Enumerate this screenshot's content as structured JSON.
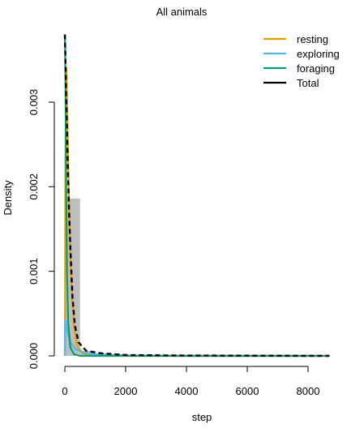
{
  "chart_data": {
    "type": "histogram+density",
    "title": "All animals",
    "xlabel": "step",
    "ylabel": "Density",
    "xlim": [
      0,
      8700
    ],
    "ylim": [
      0,
      0.0038
    ],
    "x_ticks": [
      0,
      2000,
      4000,
      6000,
      8000
    ],
    "x_tick_labels": [
      "0",
      "2000",
      "4000",
      "6000",
      "8000"
    ],
    "y_ticks": [
      0,
      0.001,
      0.002,
      0.003
    ],
    "y_tick_labels": [
      "0.000",
      "0.001",
      "0.002",
      "0.003"
    ],
    "histogram": {
      "bin_width": 500,
      "bins": [
        {
          "x0": 0,
          "x1": 500,
          "density": 0.00186
        },
        {
          "x0": 500,
          "x1": 1000,
          "density": 6e-05
        },
        {
          "x0": 1000,
          "x1": 1500,
          "density": 3e-05
        },
        {
          "x0": 1500,
          "x1": 2000,
          "density": 2e-05
        },
        {
          "x0": 2000,
          "x1": 2500,
          "density": 1e-05
        },
        {
          "x0": 2500,
          "x1": 3000,
          "density": 1e-05
        },
        {
          "x0": 3000,
          "x1": 3500,
          "density": 1e-05
        }
      ],
      "color": "#bebebe"
    },
    "series": [
      {
        "name": "resting",
        "color": "#E69F00",
        "dash": false,
        "points": [
          [
            0,
            0.0
          ],
          [
            5,
            0.0005
          ],
          [
            15,
            0.0021
          ],
          [
            30,
            0.0032
          ],
          [
            50,
            0.0034
          ],
          [
            80,
            0.0029
          ],
          [
            120,
            0.0021
          ],
          [
            170,
            0.0013
          ],
          [
            230,
            0.0007
          ],
          [
            300,
            0.00035
          ],
          [
            400,
            0.00012
          ],
          [
            600,
            3e-05
          ],
          [
            900,
            0.0
          ],
          [
            8700,
            0.0
          ]
        ]
      },
      {
        "name": "exploring",
        "color": "#56B4E9",
        "dash": false,
        "points": [
          [
            0,
            0.0
          ],
          [
            5,
            0.0003
          ],
          [
            20,
            0.00042
          ],
          [
            50,
            0.00035
          ],
          [
            100,
            0.00026
          ],
          [
            200,
            0.00015
          ],
          [
            350,
            8e-05
          ],
          [
            600,
            4e-05
          ],
          [
            1000,
            2e-05
          ],
          [
            2000,
            5e-06
          ],
          [
            4000,
            0.0
          ],
          [
            8700,
            0.0
          ]
        ]
      },
      {
        "name": "foraging",
        "color": "#009E73",
        "dash": false,
        "points": [
          [
            0,
            0.0038
          ],
          [
            10,
            0.0036
          ],
          [
            25,
            0.003
          ],
          [
            45,
            0.002
          ],
          [
            70,
            0.001
          ],
          [
            110,
            0.0004
          ],
          [
            180,
            0.0001
          ],
          [
            300,
            2e-05
          ],
          [
            500,
            0.0
          ],
          [
            8700,
            0.0
          ]
        ]
      },
      {
        "name": "Total",
        "color": "#000000",
        "dash": true,
        "points": [
          [
            0,
            0.0038
          ],
          [
            15,
            0.0036
          ],
          [
            40,
            0.0031
          ],
          [
            70,
            0.0027
          ],
          [
            100,
            0.0022
          ],
          [
            140,
            0.0017
          ],
          [
            190,
            0.0012
          ],
          [
            250,
            0.0007
          ],
          [
            330,
            0.00036
          ],
          [
            450,
            0.00016
          ],
          [
            700,
            6e-05
          ],
          [
            1200,
            3e-05
          ],
          [
            2000,
            1e-05
          ],
          [
            3500,
            5e-06
          ],
          [
            8700,
            0.0
          ]
        ]
      }
    ],
    "legend": {
      "position": "top-right",
      "items": [
        {
          "label": "resting",
          "color": "#E69F00"
        },
        {
          "label": "exploring",
          "color": "#56B4E9"
        },
        {
          "label": "foraging",
          "color": "#009E73"
        },
        {
          "label": "Total",
          "color": "#000000"
        }
      ]
    },
    "grid": false
  }
}
